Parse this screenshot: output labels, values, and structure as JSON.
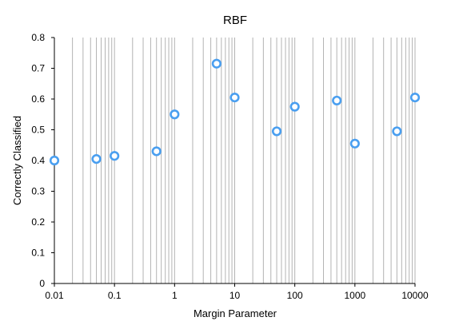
{
  "chart_data": {
    "type": "scatter",
    "title": "RBF",
    "xlabel": "Margin Parameter",
    "ylabel": "Correctly Classified",
    "xscale": "log",
    "xlim": [
      0.01,
      10000
    ],
    "ylim": [
      0,
      0.8
    ],
    "xticks": [
      "0.01",
      "0.1",
      "1",
      "10",
      "100",
      "1000",
      "10000"
    ],
    "yticks": [
      "0",
      "0.1",
      "0.2",
      "0.3",
      "0.4",
      "0.5",
      "0.6",
      "0.7",
      "0.8"
    ],
    "grid": "vertical-minor",
    "marker_color": "#4a9ff0",
    "points": [
      {
        "x": 0.01,
        "y": 0.4
      },
      {
        "x": 0.05,
        "y": 0.405
      },
      {
        "x": 0.1,
        "y": 0.415
      },
      {
        "x": 0.5,
        "y": 0.43
      },
      {
        "x": 1,
        "y": 0.55
      },
      {
        "x": 5,
        "y": 0.715
      },
      {
        "x": 10,
        "y": 0.605
      },
      {
        "x": 50,
        "y": 0.495
      },
      {
        "x": 100,
        "y": 0.575
      },
      {
        "x": 500,
        "y": 0.595
      },
      {
        "x": 1000,
        "y": 0.455
      },
      {
        "x": 5000,
        "y": 0.495
      },
      {
        "x": 10000,
        "y": 0.605
      }
    ]
  }
}
